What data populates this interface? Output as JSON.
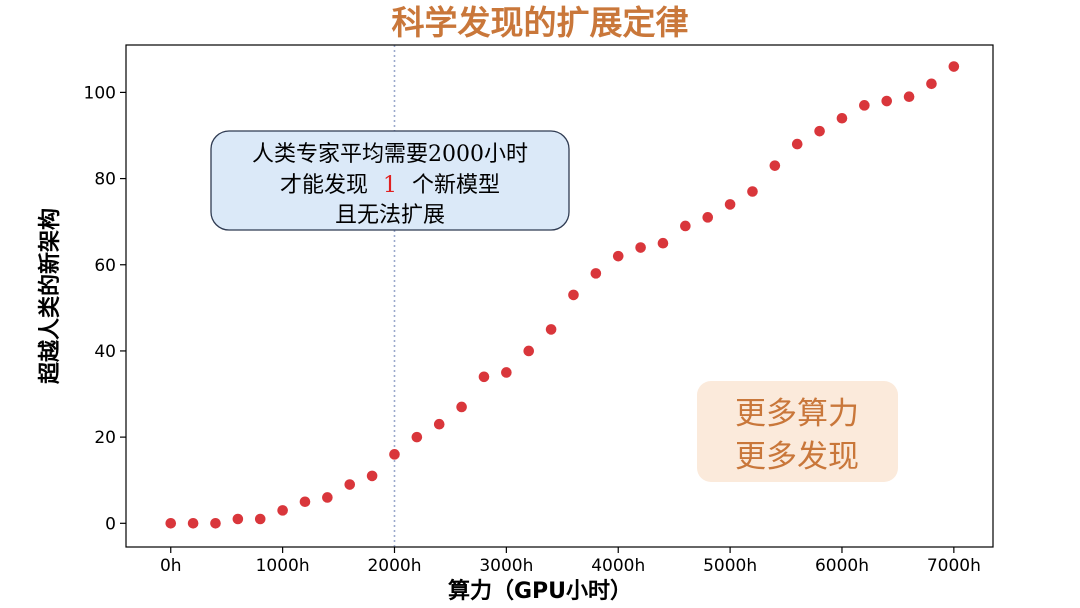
{
  "chart_data": {
    "type": "scatter",
    "title": "科学发现的扩展定律",
    "xlabel": "算力（GPU小时）",
    "ylabel": "超越人类的新架构",
    "xlim": [
      -400,
      7350
    ],
    "ylim": [
      -5.5,
      111
    ],
    "x_ticks": [
      0,
      1000,
      2000,
      3000,
      4000,
      5000,
      6000,
      7000
    ],
    "x_tick_labels": [
      "0h",
      "1000h",
      "2000h",
      "3000h",
      "4000h",
      "5000h",
      "6000h",
      "7000h"
    ],
    "y_ticks": [
      0,
      20,
      40,
      60,
      80,
      100
    ],
    "y_tick_labels": [
      "0",
      "20",
      "40",
      "60",
      "80",
      "100"
    ],
    "grid": false,
    "legend": "none",
    "reference_line": {
      "orientation": "vertical",
      "x": 2000,
      "style": "dotted"
    },
    "colors": {
      "marker": "#d9363b",
      "title": "#c9773a",
      "ref_line": "#9aa9cc",
      "box_fill": "#dbe9f8",
      "box_edge": "#2f3b52",
      "callout_fill": "#fbeadb",
      "callout_text": "#c9773a",
      "highlight": "#e02020"
    },
    "series": [
      {
        "x": [
          0,
          200,
          400,
          600,
          800,
          1000,
          1200,
          1400,
          1600,
          1800,
          2000,
          2200,
          2400,
          2600,
          2800,
          3000,
          3200,
          3400,
          3600,
          3800,
          4000,
          4200,
          4400,
          4600,
          4800,
          5000,
          5200,
          5400,
          5600,
          5800,
          6000,
          6200,
          6400,
          6600,
          6800,
          7000
        ],
        "values": [
          0,
          0,
          0,
          1,
          1,
          3,
          5,
          6,
          9,
          11,
          16,
          20,
          23,
          27,
          34,
          35,
          40,
          45,
          53,
          58,
          62,
          64,
          65,
          69,
          71,
          74,
          77,
          83,
          88,
          91,
          94,
          97,
          98,
          99,
          102,
          106
        ]
      }
    ],
    "annotations": {
      "expert_box": {
        "line1": "人类专家平均需要2000小时",
        "line2_prefix": "才能发现",
        "line2_number": "1",
        "line2_suffix": "个新模型",
        "line3": "且无法扩展"
      },
      "callout": {
        "line1": "更多算力",
        "line2": "更多发现"
      }
    }
  }
}
